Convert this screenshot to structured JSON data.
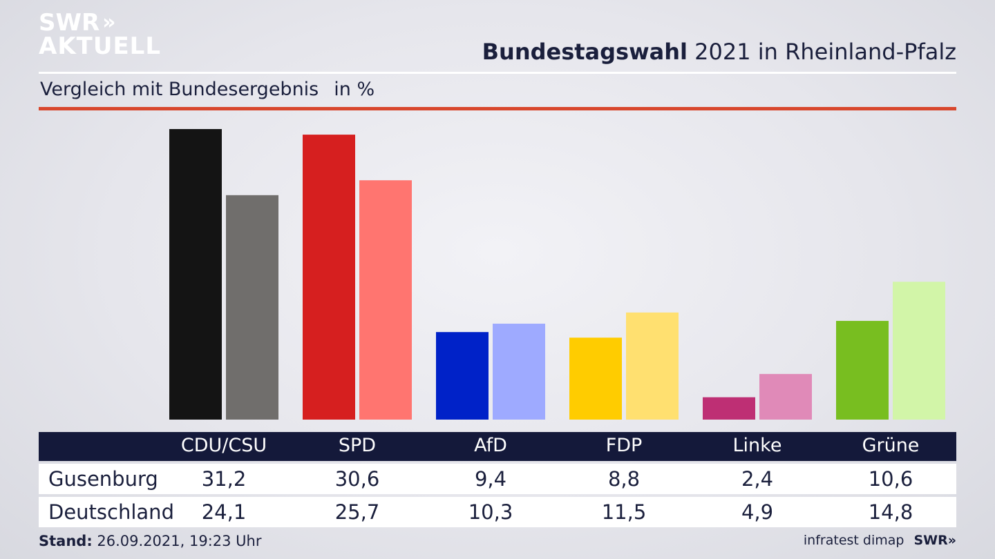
{
  "brand": {
    "logo_line1": "SWR",
    "logo_arrows": "»",
    "logo_line2": "AKTUELL"
  },
  "header": {
    "title_bold": "Bundestagswahl",
    "title_rest": " 2021 in Rheinland-Pfalz",
    "subtitle": "Vergleich mit Bundesergebnis",
    "unit": "in %"
  },
  "chart_data": {
    "type": "bar",
    "categories": [
      "CDU/CSU",
      "SPD",
      "AfD",
      "FDP",
      "Linke",
      "Grüne"
    ],
    "series": [
      {
        "name": "Gusenburg",
        "values": [
          31.2,
          30.6,
          9.4,
          8.8,
          2.4,
          10.6
        ],
        "values_text": [
          "31,2",
          "30,6",
          "9,4",
          "8,8",
          "2,4",
          "10,6"
        ]
      },
      {
        "name": "Deutschland",
        "values": [
          24.1,
          25.7,
          10.3,
          11.5,
          4.9,
          14.8
        ],
        "values_text": [
          "24,1",
          "25,7",
          "10,3",
          "11,5",
          "4,9",
          "14,8"
        ]
      }
    ],
    "colors": {
      "primary": [
        "#141414",
        "#d61f1f",
        "#0022c8",
        "#ffcc00",
        "#be2f74",
        "#78be20"
      ],
      "secondary": [
        "#706e6c",
        "#ff7570",
        "#9eaaff",
        "#ffe070",
        "#e08ab8",
        "#d2f5a8"
      ]
    },
    "ylim": [
      0,
      31.2
    ],
    "grid": false,
    "legend": "table-below"
  },
  "footer": {
    "stand_label": "Stand:",
    "stand_value": " 26.09.2021, 19:23 Uhr",
    "source": "infratest dimap",
    "swr": "SWR»"
  }
}
